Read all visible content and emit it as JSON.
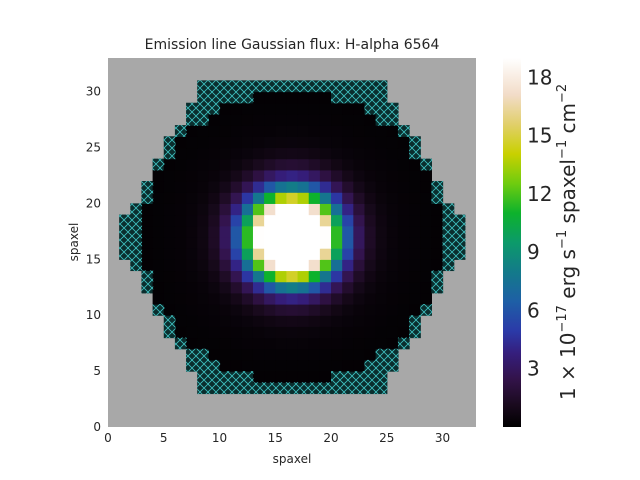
{
  "chart_data": {
    "type": "heatmap",
    "title": "Emission line Gaussian flux: H-alpha 6564",
    "xlabel": "spaxel",
    "ylabel": "spaxel",
    "xlim": [
      0,
      33
    ],
    "ylim": [
      0,
      33
    ],
    "xticks": [
      "0",
      "5",
      "10",
      "15",
      "20",
      "25",
      "30"
    ],
    "yticks": [
      "0",
      "5",
      "10",
      "15",
      "20",
      "25",
      "30"
    ],
    "colorbar": {
      "label": "1 × 10⁻¹⁷ erg s⁻¹ spaxel⁻¹ cm⁻²",
      "label_parts": [
        "1 × 10",
        "−17",
        " erg s",
        "−1",
        " spaxel",
        "−1",
        " cm",
        "−2"
      ],
      "vmin": 0,
      "vmax": 19,
      "ticks": [
        "3",
        "6",
        "9",
        "12",
        "15",
        "18"
      ],
      "colormap": "gist_ncar-like (black → purple → blue → teal → green → yellow → peach → white)"
    },
    "map": {
      "center": [
        16.5,
        17.0
      ],
      "hex_radius": 16,
      "valid_radius": 13.3,
      "peak_flux": 19,
      "core_radius_white": 2.6,
      "background_color": "#a8a8a8",
      "masked_color": "#0a2e2e",
      "hatch_color": "#3fbfbf",
      "grid": false
    }
  }
}
